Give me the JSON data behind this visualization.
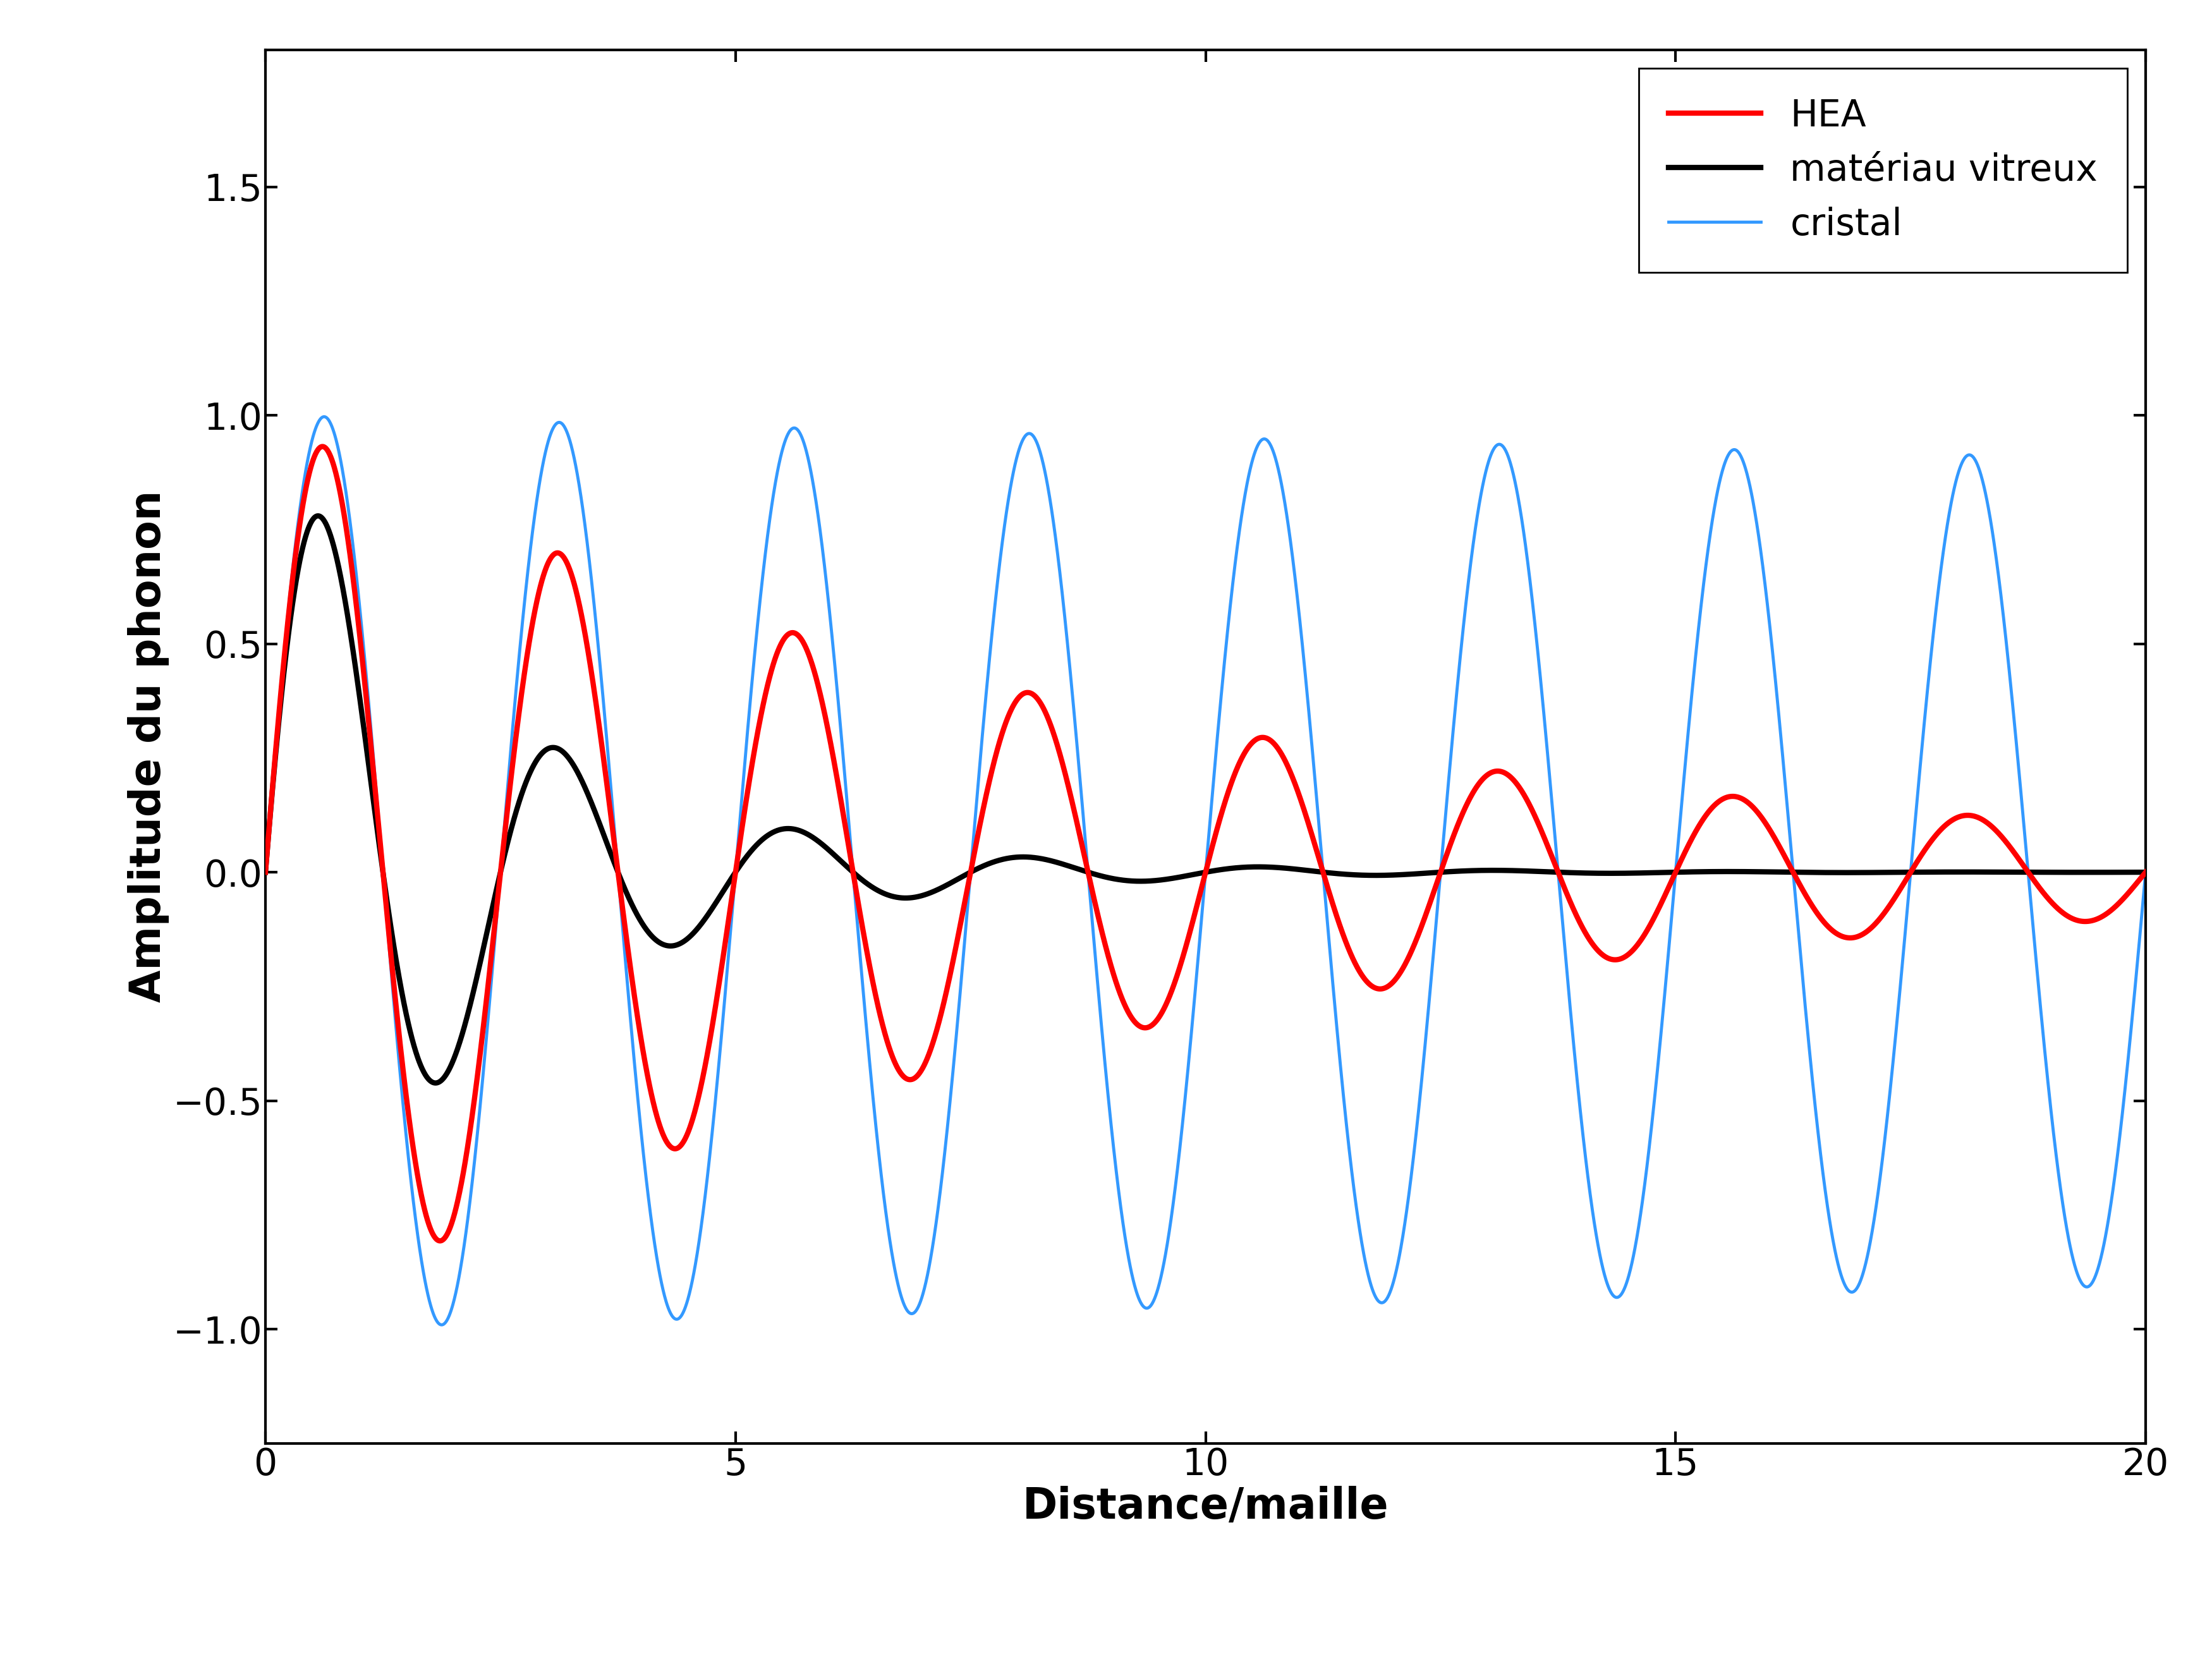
{
  "title": "",
  "xlabel": "Distance/maille",
  "ylabel": "Amplitude du phonon",
  "xlim": [
    0,
    20
  ],
  "ylim": [
    -1.25,
    1.8
  ],
  "yticks": [
    -1,
    -0.5,
    0,
    0.5,
    1,
    1.5
  ],
  "xticks": [
    0,
    5,
    10,
    15,
    20
  ],
  "crystal_color": "#3399FF",
  "hea_color": "#FF0000",
  "glass_color": "#000000",
  "crystal_label": "cristal",
  "hea_label": "HEA",
  "glass_label": "matériau vitreux",
  "crystal_linewidth": 3.5,
  "hea_linewidth": 6.0,
  "glass_linewidth": 6.0,
  "background_color": "#ffffff",
  "legend_fontsize": 42,
  "axis_fontsize": 48,
  "tick_fontsize": 42,
  "crystal_damping": 0.005,
  "hea_damping": 0.115,
  "glass_damping": 0.42,
  "wavelength_in_lattice_units": 2.5,
  "x_max": 20.0,
  "n_points": 5000
}
